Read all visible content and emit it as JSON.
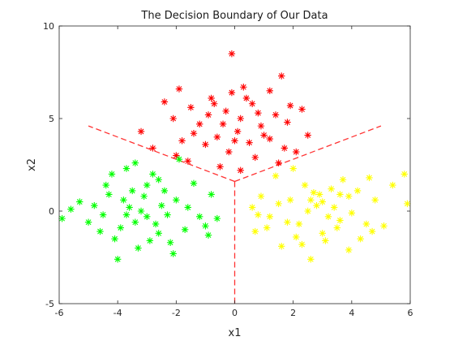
{
  "chart_data": {
    "type": "scatter",
    "title": "The Decision Boundary of Our Data",
    "xlabel": "x1",
    "ylabel": "x2",
    "xlim": [
      -6,
      6
    ],
    "ylim": [
      -5,
      10
    ],
    "xticks": [
      "-6",
      "-4",
      "-2",
      "0",
      "2",
      "4",
      "6"
    ],
    "yticks": [
      "-5",
      "0",
      "5",
      "10"
    ],
    "xtick_values": [
      -6,
      -4,
      -2,
      0,
      2,
      4,
      6
    ],
    "ytick_values": [
      -5,
      0,
      5,
      10
    ],
    "grid": false,
    "marker": "asterisk",
    "series": [
      {
        "color": "#ff0000",
        "center": [
          0.1,
          4.9
        ],
        "points": [
          [
            -0.1,
            8.5
          ],
          [
            1.6,
            7.3
          ],
          [
            -1.9,
            6.6
          ],
          [
            0.3,
            6.7
          ],
          [
            1.2,
            6.5
          ],
          [
            -0.8,
            6.1
          ],
          [
            -1.5,
            5.6
          ],
          [
            0.6,
            5.8
          ],
          [
            1.4,
            5.2
          ],
          [
            -0.3,
            5.4
          ],
          [
            0.9,
            4.6
          ],
          [
            -1.2,
            4.7
          ],
          [
            0.1,
            4.3
          ],
          [
            -0.6,
            4.0
          ],
          [
            1.8,
            4.8
          ],
          [
            -2.1,
            5.0
          ],
          [
            0.5,
            3.7
          ],
          [
            -1.0,
            3.6
          ],
          [
            1.2,
            3.9
          ],
          [
            -0.2,
            3.2
          ],
          [
            -3.2,
            4.3
          ],
          [
            -2.8,
            3.4
          ],
          [
            2.5,
            4.1
          ],
          [
            2.1,
            3.2
          ],
          [
            -1.6,
            2.7
          ],
          [
            0.7,
            2.9
          ],
          [
            1.5,
            2.6
          ],
          [
            -0.5,
            2.4
          ],
          [
            0.2,
            5.0
          ],
          [
            -0.9,
            5.2
          ],
          [
            0.8,
            5.3
          ],
          [
            -0.4,
            4.7
          ],
          [
            1.0,
            4.1
          ],
          [
            -1.4,
            4.2
          ],
          [
            0.4,
            6.1
          ],
          [
            -0.7,
            5.8
          ],
          [
            1.9,
            5.7
          ],
          [
            -2.4,
            5.9
          ],
          [
            0.0,
            3.8
          ],
          [
            -1.8,
            3.8
          ],
          [
            2.3,
            5.5
          ],
          [
            0.2,
            2.2
          ],
          [
            -2.0,
            3.0
          ],
          [
            1.7,
            3.4
          ],
          [
            -0.1,
            6.4
          ]
        ]
      },
      {
        "color": "#00ff00",
        "center": [
          -3.3,
          0.0
        ],
        "points": [
          [
            -5.9,
            -0.4
          ],
          [
            -5.3,
            0.5
          ],
          [
            -4.6,
            -1.1
          ],
          [
            -4.4,
            1.4
          ],
          [
            -4.0,
            -2.6
          ],
          [
            -3.7,
            2.3
          ],
          [
            -3.4,
            -0.6
          ],
          [
            -3.1,
            0.8
          ],
          [
            -2.9,
            -1.6
          ],
          [
            -2.6,
            1.7
          ],
          [
            -2.3,
            -0.2
          ],
          [
            -2.0,
            0.6
          ],
          [
            -1.7,
            -1.0
          ],
          [
            -1.4,
            1.5
          ],
          [
            -1.0,
            -0.8
          ],
          [
            -0.8,
            0.9
          ],
          [
            -0.6,
            -0.4
          ],
          [
            -3.6,
            0.2
          ],
          [
            -3.9,
            -0.9
          ],
          [
            -4.8,
            0.3
          ],
          [
            -2.8,
            2.0
          ],
          [
            -3.3,
            -2.0
          ],
          [
            -2.2,
            -1.7
          ],
          [
            -4.2,
            2.0
          ],
          [
            -1.9,
            2.8
          ],
          [
            -3.0,
            -0.3
          ],
          [
            -3.5,
            1.1
          ],
          [
            -2.5,
            0.3
          ],
          [
            -4.5,
            -0.2
          ],
          [
            -3.8,
            0.6
          ],
          [
            -2.7,
            -0.7
          ],
          [
            -3.2,
            0.0
          ],
          [
            -4.1,
            -1.5
          ],
          [
            -2.4,
            1.1
          ],
          [
            -1.6,
            0.2
          ],
          [
            -5.0,
            -0.6
          ],
          [
            -3.7,
            -0.2
          ],
          [
            -2.1,
            -2.3
          ],
          [
            -4.3,
            0.9
          ],
          [
            -3.0,
            1.4
          ],
          [
            -1.2,
            -0.3
          ],
          [
            -0.9,
            -1.3
          ],
          [
            -5.6,
            0.1
          ],
          [
            -2.6,
            -1.2
          ],
          [
            -3.4,
            2.6
          ]
        ]
      },
      {
        "color": "#ffff00",
        "center": [
          2.8,
          -0.2
        ],
        "points": [
          [
            5.8,
            2.0
          ],
          [
            5.9,
            0.4
          ],
          [
            5.1,
            -0.8
          ],
          [
            4.6,
            1.8
          ],
          [
            4.3,
            -1.5
          ],
          [
            3.9,
            0.8
          ],
          [
            3.6,
            -0.5
          ],
          [
            3.3,
            1.2
          ],
          [
            3.0,
            -1.2
          ],
          [
            2.8,
            0.3
          ],
          [
            2.6,
            -2.6
          ],
          [
            2.4,
            1.4
          ],
          [
            2.2,
            -0.7
          ],
          [
            1.9,
            0.6
          ],
          [
            1.6,
            -1.9
          ],
          [
            1.4,
            1.9
          ],
          [
            1.2,
            -0.3
          ],
          [
            0.9,
            0.8
          ],
          [
            0.7,
            -1.1
          ],
          [
            0.6,
            0.2
          ],
          [
            3.5,
            -0.9
          ],
          [
            2.9,
            0.9
          ],
          [
            4.0,
            -0.1
          ],
          [
            2.1,
            -1.4
          ],
          [
            3.7,
            1.7
          ],
          [
            2.5,
            0.0
          ],
          [
            3.2,
            -0.3
          ],
          [
            4.8,
            0.6
          ],
          [
            1.8,
            -0.6
          ],
          [
            3.0,
            0.5
          ],
          [
            2.3,
            -1.8
          ],
          [
            4.5,
            -0.7
          ],
          [
            3.4,
            0.2
          ],
          [
            1.5,
            0.4
          ],
          [
            2.7,
            1.0
          ],
          [
            3.9,
            -2.1
          ],
          [
            4.2,
            1.1
          ],
          [
            2.0,
            2.3
          ],
          [
            5.4,
            1.4
          ],
          [
            1.1,
            -0.9
          ],
          [
            3.1,
            -1.6
          ],
          [
            2.6,
            0.6
          ],
          [
            4.7,
            -1.1
          ],
          [
            0.8,
            -0.2
          ],
          [
            3.6,
            0.9
          ]
        ]
      }
    ],
    "boundary": {
      "color": "#ff3333",
      "style": "dashed",
      "vertex": [
        0.0,
        1.6
      ],
      "rays": [
        [
          -5.0,
          4.6
        ],
        [
          5.0,
          4.6
        ],
        [
          0.0,
          -5.0
        ]
      ]
    }
  }
}
